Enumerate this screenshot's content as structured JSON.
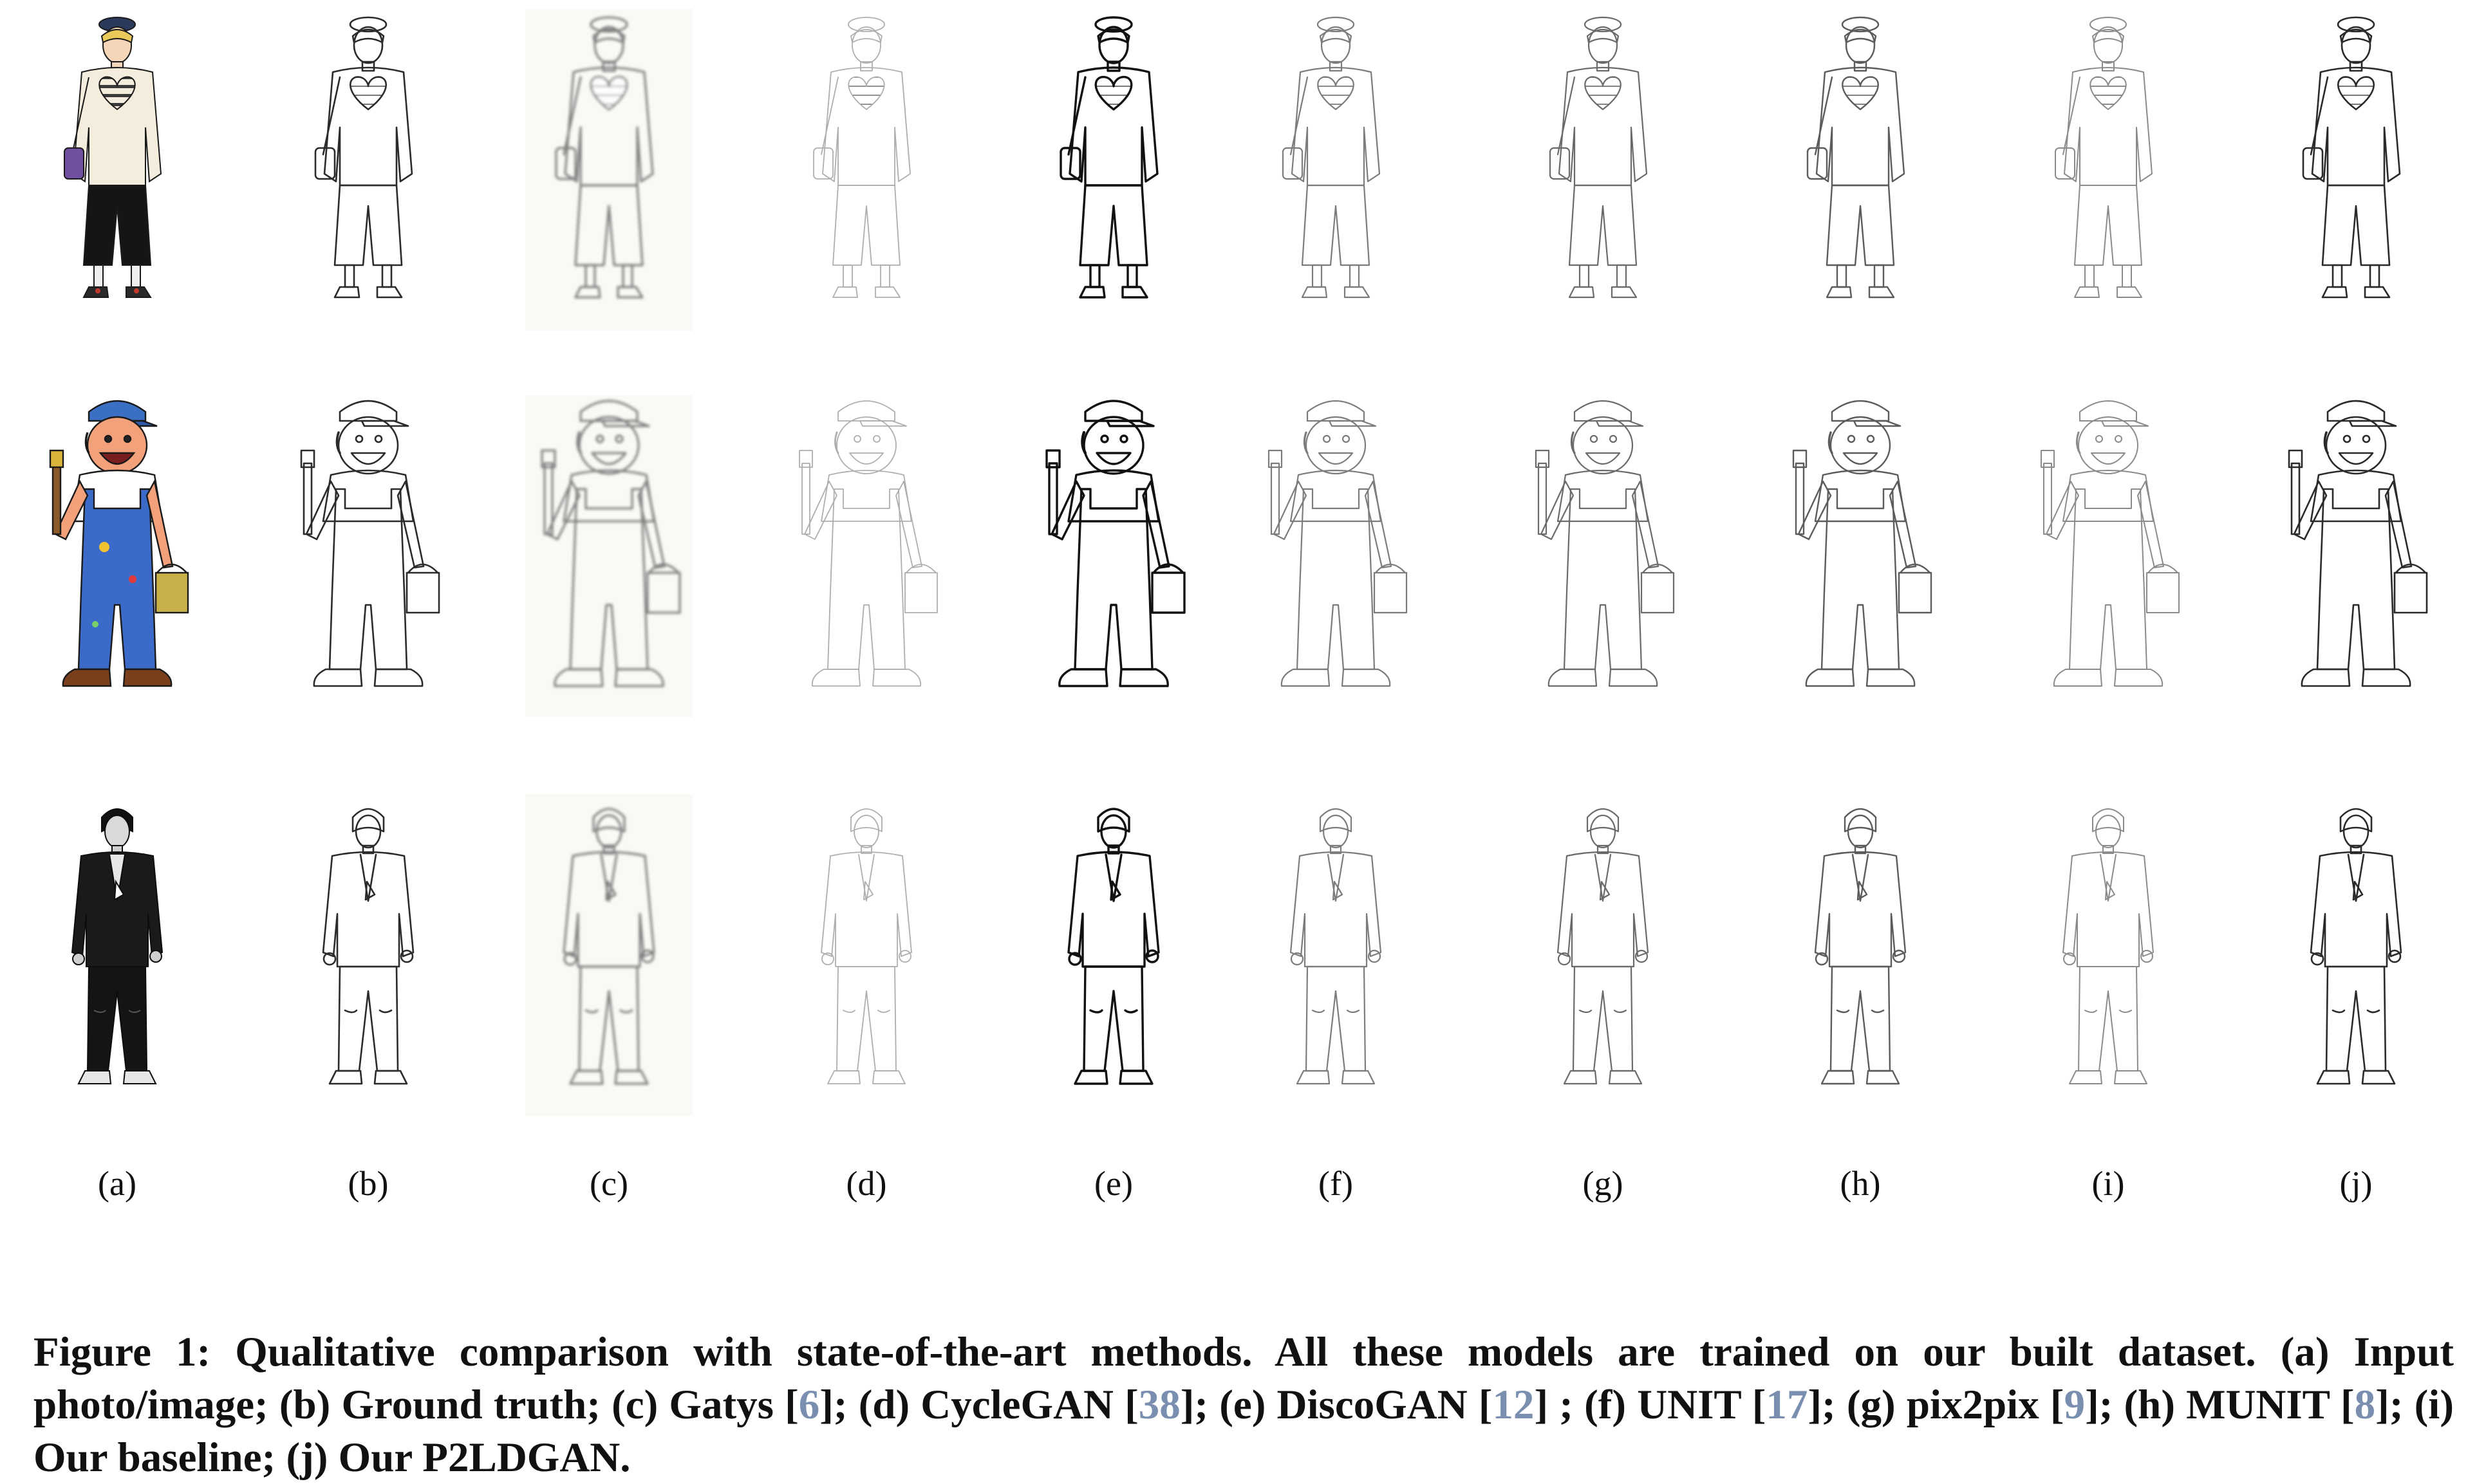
{
  "figure": {
    "rows": 3,
    "column_labels": [
      "(a)",
      "(b)",
      "(c)",
      "(d)",
      "(e)",
      "(f)",
      "(g)",
      "(h)",
      "(i)",
      "(j)"
    ],
    "row_subjects": [
      "young-man-heart-sweater",
      "cartoon-painter",
      "man-black-blazer"
    ],
    "colors": {
      "ref_link": "#7a8fb0",
      "text": "#111111",
      "sketch_line": "#333333"
    }
  },
  "caption": {
    "segments": [
      {
        "text": "Figure 1: Qualitative comparison with state-of-the-art methods. All these models are trained on our built dataset. (a) Input photo/image; (b) Ground truth; (c) Gatys [",
        "ref": false
      },
      {
        "text": "6",
        "ref": true
      },
      {
        "text": "]; (d) CycleGAN [",
        "ref": false
      },
      {
        "text": "38",
        "ref": true
      },
      {
        "text": "]; (e) DiscoGAN [",
        "ref": false
      },
      {
        "text": "12",
        "ref": true
      },
      {
        "text": "] ; (f) UNIT [",
        "ref": false
      },
      {
        "text": "17",
        "ref": true
      },
      {
        "text": "]; (g) pix2pix [",
        "ref": false
      },
      {
        "text": "9",
        "ref": true
      },
      {
        "text": "]; (h) MUNIT [",
        "ref": false
      },
      {
        "text": "8",
        "ref": true
      },
      {
        "text": "]; (i) Our baseline; (j) Our P2LDGAN.",
        "ref": false
      }
    ]
  }
}
